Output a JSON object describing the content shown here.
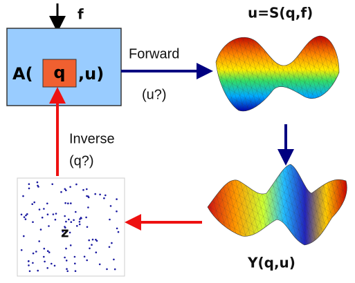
{
  "nodes": {
    "model": {
      "prefix": "A(",
      "param": "q",
      "suffix": ",u)"
    },
    "input": "f",
    "state": "u=S(q,f)",
    "observation": "Y(q,u)",
    "data": "z"
  },
  "edges": {
    "forward": {
      "label": "Forward",
      "sub": "(u?)"
    },
    "inverse": {
      "label": "Inverse",
      "sub": "(q?)"
    }
  }
}
